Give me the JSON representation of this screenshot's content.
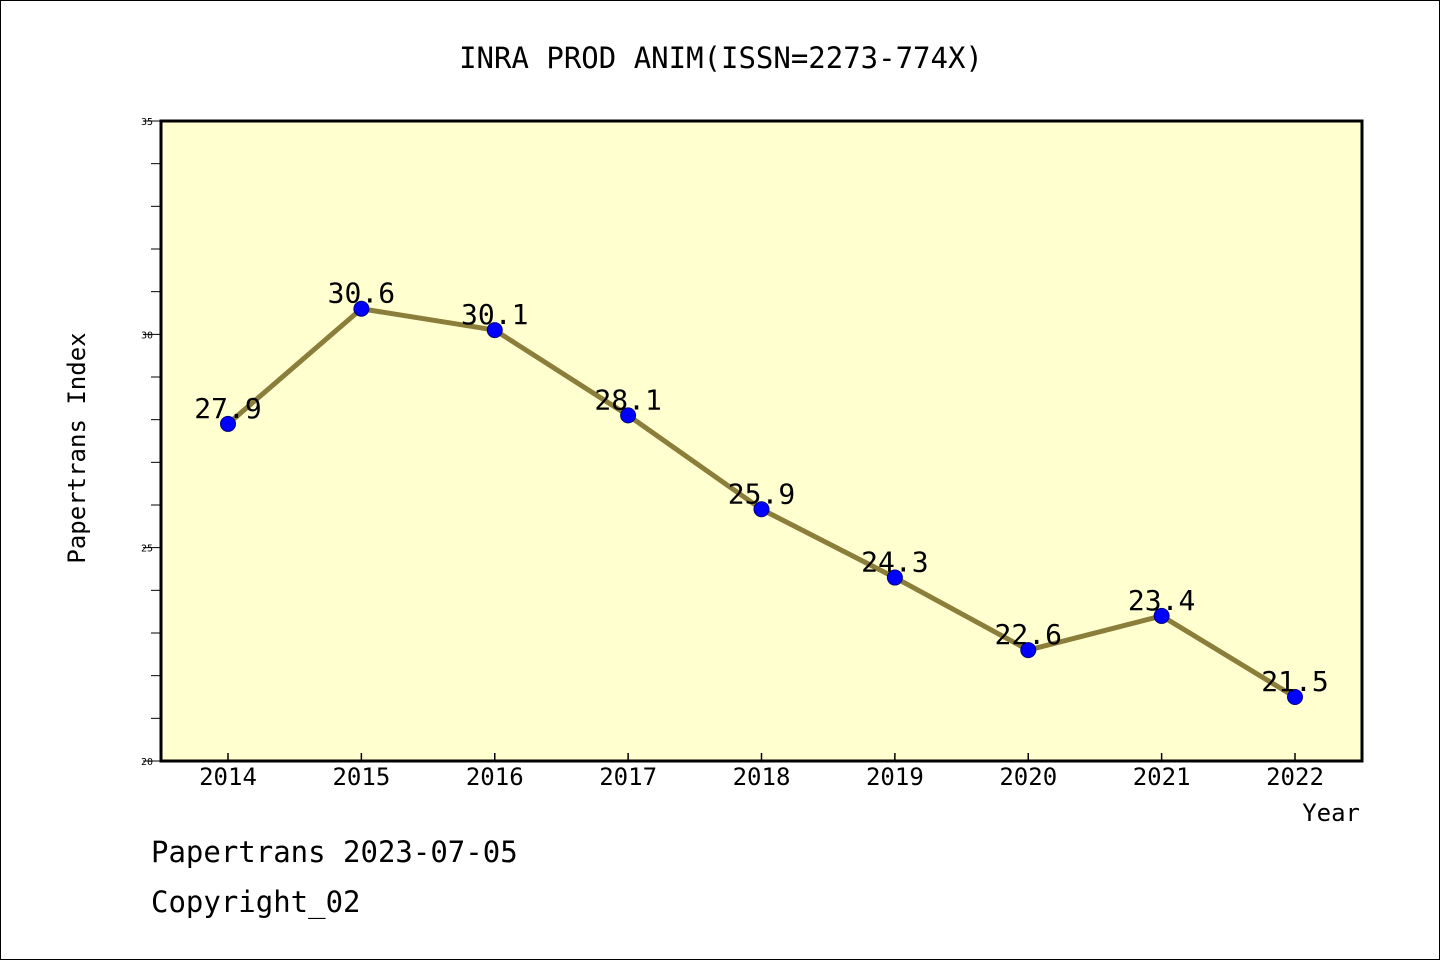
{
  "chart_data": {
    "type": "line",
    "title": "INRA PROD ANIM(ISSN=2273-774X)",
    "xlabel": "Year",
    "ylabel": "Papertrans Index",
    "categories": [
      "2014",
      "2015",
      "2016",
      "2017",
      "2018",
      "2019",
      "2020",
      "2021",
      "2022"
    ],
    "series": [
      {
        "values": [
          27.9,
          30.6,
          30.1,
          28.1,
          25.9,
          24.3,
          22.6,
          23.4,
          21.5
        ],
        "data_labels": [
          "27.9",
          "30.6",
          "30.1",
          "28.1",
          "25.9",
          "24.3",
          "22.6",
          "23.4",
          "21.5"
        ]
      }
    ],
    "ylim": [
      20,
      35
    ],
    "y_ticks": [
      20,
      25,
      30,
      35
    ],
    "y_tick_labels": [
      "20",
      "25",
      "30",
      "35"
    ],
    "grid": false,
    "colors": {
      "plot_background": "#ffffd0",
      "line": "#8b7d3a",
      "marker": "#0000ff"
    }
  },
  "footer": {
    "date_text": "Papertrans 2023-07-05",
    "copyright_text": "Copyright_02"
  }
}
